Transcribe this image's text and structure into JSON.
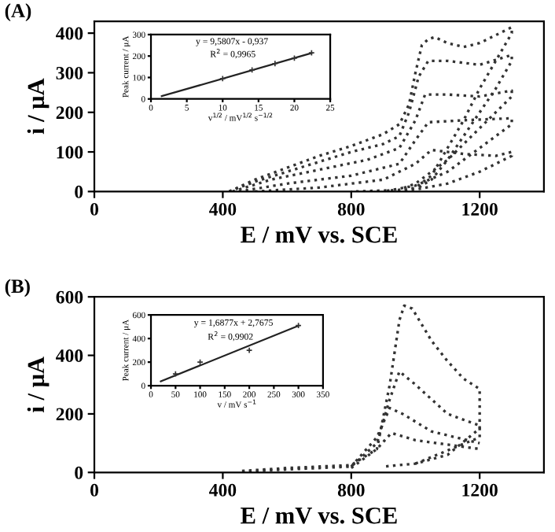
{
  "chart_data": [
    {
      "type": "line",
      "line_style": "dotted",
      "title": "(A)",
      "xlabel": "E / mV vs. SCE",
      "ylabel": "i / μA",
      "xlim": [
        0,
        1400
      ],
      "xticks": [
        0,
        400,
        800,
        1200
      ],
      "ylim": [
        0,
        430
      ],
      "yticks": [
        0,
        100,
        200,
        300,
        400
      ],
      "grid": false,
      "legend": false,
      "series": [
        {
          "color": "#333333",
          "x": [
            420,
            500,
            600,
            700,
            800,
            900,
            950,
            980,
            1000,
            1020,
            1040,
            1060,
            1100,
            1150,
            1200,
            1250,
            1300,
            1300,
            1250,
            1200,
            1150,
            1100,
            1050,
            1000,
            950
          ],
          "values": [
            0,
            30,
            60,
            90,
            115,
            145,
            170,
            220,
            300,
            370,
            385,
            390,
            375,
            365,
            375,
            395,
            415,
            400,
            330,
            260,
            180,
            110,
            40,
            10,
            0
          ]
        },
        {
          "color": "#333333",
          "x": [
            420,
            500,
            600,
            700,
            800,
            900,
            950,
            980,
            1010,
            1040,
            1100,
            1200,
            1300,
            1300,
            1250,
            1200,
            1150,
            1100,
            1050,
            1000
          ],
          "values": [
            0,
            25,
            50,
            75,
            100,
            120,
            140,
            200,
            290,
            330,
            330,
            320,
            345,
            330,
            260,
            200,
            140,
            80,
            30,
            5
          ]
        },
        {
          "color": "#333333",
          "x": [
            430,
            550,
            700,
            850,
            950,
            1000,
            1030,
            1100,
            1200,
            1300,
            1300,
            1200,
            1100,
            1000,
            950
          ],
          "values": [
            0,
            30,
            55,
            80,
            110,
            180,
            245,
            245,
            240,
            255,
            240,
            160,
            80,
            20,
            5
          ]
        },
        {
          "color": "#333333",
          "x": [
            450,
            600,
            800,
            950,
            1000,
            1040,
            1150,
            1300,
            1300,
            1200,
            1100,
            1000,
            900
          ],
          "values": [
            0,
            20,
            40,
            70,
            130,
            175,
            180,
            185,
            170,
            110,
            50,
            15,
            0
          ]
        },
        {
          "color": "#333333",
          "x": [
            500,
            700,
            900,
            1000,
            1050,
            1150,
            1250,
            1300,
            1300,
            1200,
            1100,
            1000,
            800
          ],
          "values": [
            0,
            10,
            30,
            70,
            105,
            95,
            90,
            100,
            90,
            50,
            20,
            5,
            0
          ]
        }
      ]
    },
    {
      "type": "scatter",
      "xlabel": "v$^{1/2}$ / mV$^{1/2}$ s$^{−1/2}$",
      "ylabel": "Peak current / μA",
      "xlim": [
        0,
        25
      ],
      "xticks": [
        0,
        5,
        10,
        15,
        20,
        25
      ],
      "ylim": [
        0,
        300
      ],
      "yticks": [
        0,
        100,
        200,
        300
      ],
      "grid": false,
      "legend": false,
      "annotations": [
        "y = 9,5807x - 0,937",
        "R$^{2}$ = 0,9965"
      ],
      "series": [
        {
          "color": "#333333",
          "marker": "cross",
          "x": [
            10,
            14.1,
            17.3,
            20,
            22.4
          ],
          "values": [
            95,
            135,
            165,
            190,
            215
          ]
        },
        {
          "type": "line",
          "color": "#222222",
          "x": [
            1.5,
            22.4
          ],
          "values": [
            13,
            214
          ]
        }
      ]
    },
    {
      "type": "line",
      "line_style": "dotted",
      "title": "(B)",
      "xlabel": "E / mV vs. SCE",
      "ylabel": "i / μA",
      "xlim": [
        0,
        1400
      ],
      "xticks": [
        0,
        400,
        800,
        1200
      ],
      "ylim": [
        0,
        600
      ],
      "yticks": [
        0,
        200,
        400,
        600
      ],
      "grid": false,
      "legend": false,
      "series": [
        {
          "color": "#333333",
          "x": [
            460,
            600,
            800,
            880,
            920,
            950,
            965,
            990,
            1050,
            1100,
            1150,
            1200,
            1200,
            1100,
            1000,
            900
          ],
          "values": [
            5,
            15,
            25,
            80,
            300,
            520,
            570,
            560,
            450,
            380,
            320,
            285,
            150,
            60,
            30,
            20
          ]
        },
        {
          "color": "#333333",
          "x": [
            460,
            800,
            880,
            920,
            950,
            1000,
            1100,
            1200,
            1200,
            1000
          ],
          "values": [
            3,
            20,
            100,
            250,
            345,
            300,
            200,
            160,
            120,
            30
          ]
        },
        {
          "color": "#333333",
          "x": [
            800,
            880,
            920,
            960,
            1050,
            1200
          ],
          "values": [
            20,
            120,
            220,
            200,
            140,
            100
          ]
        },
        {
          "color": "#333333",
          "x": [
            800,
            880,
            925,
            1000,
            1200
          ],
          "values": [
            15,
            80,
            135,
            110,
            80
          ]
        }
      ]
    },
    {
      "type": "scatter",
      "xlabel": "v / mV s$^{−1}$",
      "ylabel": "Peak current / μA",
      "xlim": [
        0,
        350
      ],
      "xticks": [
        0,
        50,
        100,
        150,
        200,
        250,
        300,
        350
      ],
      "ylim": [
        0,
        600
      ],
      "yticks": [
        0,
        200,
        400,
        600
      ],
      "grid": false,
      "legend": false,
      "annotations": [
        "y = 1,6877x + 2,7675",
        "R$^{2}$ = 0,9902"
      ],
      "series": [
        {
          "color": "#333333",
          "marker": "cross",
          "x": [
            50,
            100,
            200,
            300
          ],
          "values": [
            100,
            200,
            300,
            510
          ]
        },
        {
          "type": "line",
          "color": "#222222",
          "x": [
            20,
            300
          ],
          "values": [
            37,
            509
          ]
        }
      ]
    }
  ]
}
